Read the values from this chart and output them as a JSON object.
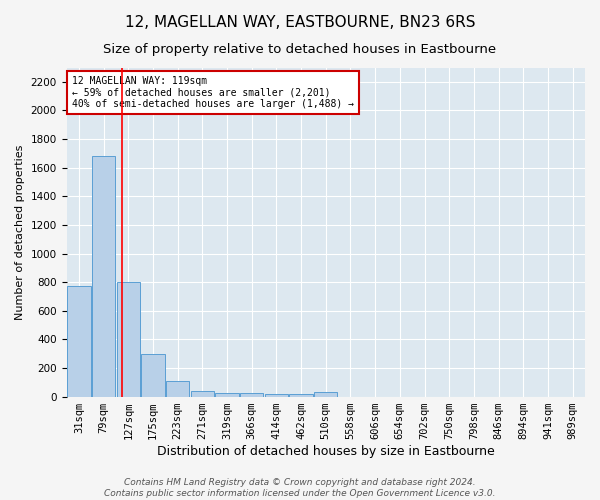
{
  "title": "12, MAGELLAN WAY, EASTBOURNE, BN23 6RS",
  "subtitle": "Size of property relative to detached houses in Eastbourne",
  "xlabel": "Distribution of detached houses by size in Eastbourne",
  "ylabel": "Number of detached properties",
  "categories": [
    "31sqm",
    "79sqm",
    "127sqm",
    "175sqm",
    "223sqm",
    "271sqm",
    "319sqm",
    "366sqm",
    "414sqm",
    "462sqm",
    "510sqm",
    "558sqm",
    "606sqm",
    "654sqm",
    "702sqm",
    "750sqm",
    "798sqm",
    "846sqm",
    "894sqm",
    "941sqm",
    "989sqm"
  ],
  "values": [
    770,
    1680,
    800,
    295,
    110,
    40,
    28,
    22,
    18,
    15,
    30,
    0,
    0,
    0,
    0,
    0,
    0,
    0,
    0,
    0,
    0
  ],
  "bar_color": "#b8d0e8",
  "bar_edge_color": "#5a9fd4",
  "red_line_x": 1.75,
  "annotation_text": "12 MAGELLAN WAY: 119sqm\n← 59% of detached houses are smaller (2,201)\n40% of semi-detached houses are larger (1,488) →",
  "annotation_box_color": "#ffffff",
  "annotation_box_edge": "#cc0000",
  "ylim": [
    0,
    2300
  ],
  "yticks": [
    0,
    200,
    400,
    600,
    800,
    1000,
    1200,
    1400,
    1600,
    1800,
    2000,
    2200
  ],
  "background_color": "#dde8f0",
  "fig_background_color": "#f5f5f5",
  "grid_color": "#ffffff",
  "footer": "Contains HM Land Registry data © Crown copyright and database right 2024.\nContains public sector information licensed under the Open Government Licence v3.0.",
  "title_fontsize": 11,
  "subtitle_fontsize": 9.5,
  "xlabel_fontsize": 9,
  "ylabel_fontsize": 8,
  "tick_fontsize": 7.5,
  "footer_fontsize": 6.5
}
